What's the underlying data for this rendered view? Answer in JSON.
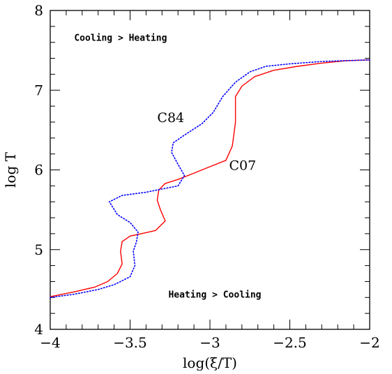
{
  "chart_data": {
    "type": "line",
    "title": "",
    "xlabel": "log(ξ/T)",
    "ylabel": "log T",
    "xlim": [
      -4,
      -2
    ],
    "ylim": [
      4,
      8
    ],
    "xticks": [
      {
        "value": -4,
        "label": "−4"
      },
      {
        "value": -3.5,
        "label": "−3.5"
      },
      {
        "value": -3,
        "label": "−3"
      },
      {
        "value": -2.5,
        "label": "−2.5"
      },
      {
        "value": -2,
        "label": "−2"
      }
    ],
    "yticks": [
      {
        "value": 4,
        "label": "4"
      },
      {
        "value": 5,
        "label": "5"
      },
      {
        "value": 6,
        "label": "6"
      },
      {
        "value": 7,
        "label": "7"
      },
      {
        "value": 8,
        "label": "8"
      }
    ],
    "grid": false,
    "annotations": [
      {
        "text": "Cooling > Heating",
        "x": -3.85,
        "y": 7.62
      },
      {
        "text": "Heating > Cooling",
        "x": -3.26,
        "y": 4.4
      }
    ],
    "series": [
      {
        "name": "C07",
        "color": "#ff0000",
        "style": "solid",
        "label_at": [
          -2.88,
          6.0
        ],
        "points": [
          [
            -4.0,
            4.41
          ],
          [
            -3.85,
            4.47
          ],
          [
            -3.72,
            4.53
          ],
          [
            -3.64,
            4.6
          ],
          [
            -3.58,
            4.7
          ],
          [
            -3.55,
            4.82
          ],
          [
            -3.56,
            4.98
          ],
          [
            -3.55,
            5.1
          ],
          [
            -3.5,
            5.17
          ],
          [
            -3.43,
            5.2
          ],
          [
            -3.34,
            5.24
          ],
          [
            -3.28,
            5.36
          ],
          [
            -3.31,
            5.5
          ],
          [
            -3.33,
            5.62
          ],
          [
            -3.32,
            5.75
          ],
          [
            -3.28,
            5.83
          ],
          [
            -3.2,
            5.88
          ],
          [
            -3.1,
            5.96
          ],
          [
            -3.0,
            6.04
          ],
          [
            -2.9,
            6.12
          ],
          [
            -2.86,
            6.3
          ],
          [
            -2.84,
            6.6
          ],
          [
            -2.84,
            6.92
          ],
          [
            -2.8,
            7.05
          ],
          [
            -2.72,
            7.17
          ],
          [
            -2.6,
            7.25
          ],
          [
            -2.45,
            7.3
          ],
          [
            -2.3,
            7.34
          ],
          [
            -2.15,
            7.37
          ],
          [
            -2.0,
            7.38
          ]
        ]
      },
      {
        "name": "C84",
        "color": "#0000ff",
        "style": "dotted",
        "label_at": [
          -3.33,
          6.6
        ],
        "points": [
          [
            -4.0,
            4.4
          ],
          [
            -3.85,
            4.44
          ],
          [
            -3.7,
            4.5
          ],
          [
            -3.6,
            4.56
          ],
          [
            -3.5,
            4.66
          ],
          [
            -3.47,
            4.8
          ],
          [
            -3.48,
            4.98
          ],
          [
            -3.46,
            5.1
          ],
          [
            -3.45,
            5.22
          ],
          [
            -3.5,
            5.34
          ],
          [
            -3.58,
            5.44
          ],
          [
            -3.63,
            5.6
          ],
          [
            -3.55,
            5.68
          ],
          [
            -3.4,
            5.72
          ],
          [
            -3.3,
            5.76
          ],
          [
            -3.2,
            5.8
          ],
          [
            -3.16,
            5.93
          ],
          [
            -3.2,
            6.07
          ],
          [
            -3.24,
            6.22
          ],
          [
            -3.23,
            6.34
          ],
          [
            -3.15,
            6.45
          ],
          [
            -3.05,
            6.58
          ],
          [
            -2.98,
            6.72
          ],
          [
            -2.92,
            6.92
          ],
          [
            -2.84,
            7.1
          ],
          [
            -2.75,
            7.23
          ],
          [
            -2.65,
            7.3
          ],
          [
            -2.5,
            7.33
          ],
          [
            -2.3,
            7.36
          ],
          [
            -2.0,
            7.38
          ]
        ]
      }
    ]
  }
}
